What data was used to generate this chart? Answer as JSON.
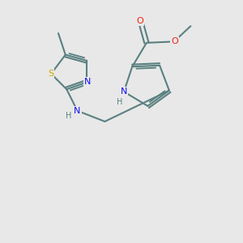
{
  "background_color": "#e8e8e8",
  "bond_color": "#5a8080",
  "bond_width": 1.5,
  "atom_colors": {
    "N": "#1010ee",
    "S": "#ccaa00",
    "O": "#ee2010",
    "C": "#5a8080"
  },
  "font_size_atom": 7.5,
  "figsize": [
    3.0,
    3.0
  ],
  "dpi": 100
}
